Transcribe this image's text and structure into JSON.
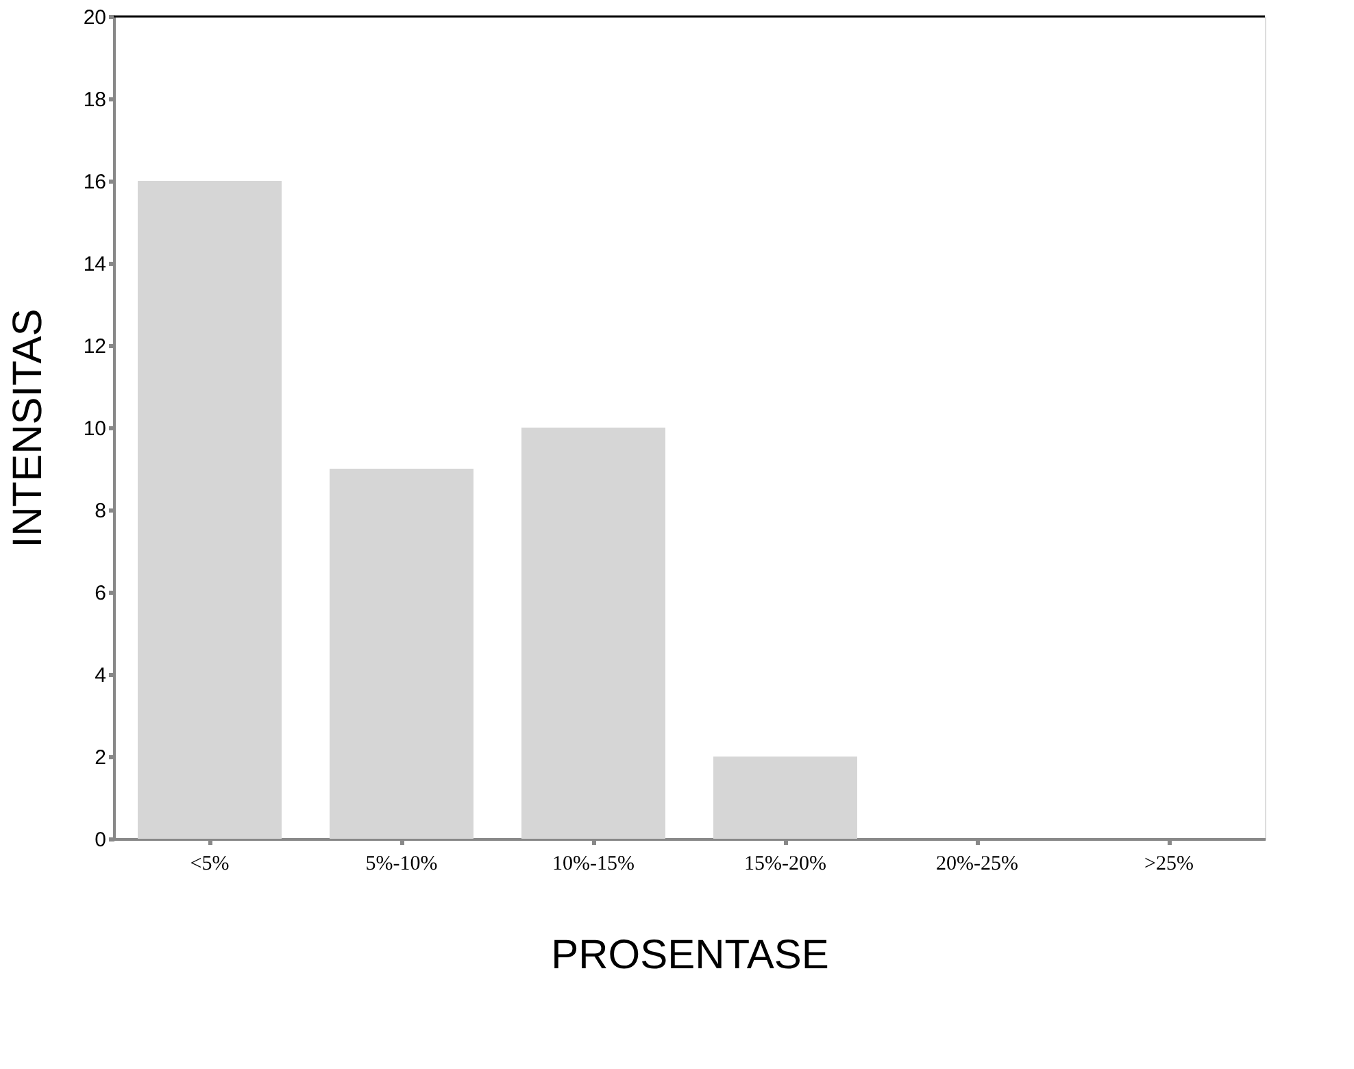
{
  "chart_data": {
    "type": "bar",
    "xlabel": "PROSENTASE",
    "ylabel": "INTENSITAS",
    "categories": [
      "<5%",
      "5%-10%",
      "10%-15%",
      "15%-20%",
      "20%-25%",
      ">25%"
    ],
    "values": [
      16,
      9,
      10,
      2,
      0,
      0
    ],
    "color": "#d6d6d6",
    "ylim": [
      0,
      20
    ],
    "yticks": [
      0,
      2,
      4,
      6,
      8,
      10,
      12,
      14,
      16,
      18,
      20
    ],
    "grid": false
  }
}
